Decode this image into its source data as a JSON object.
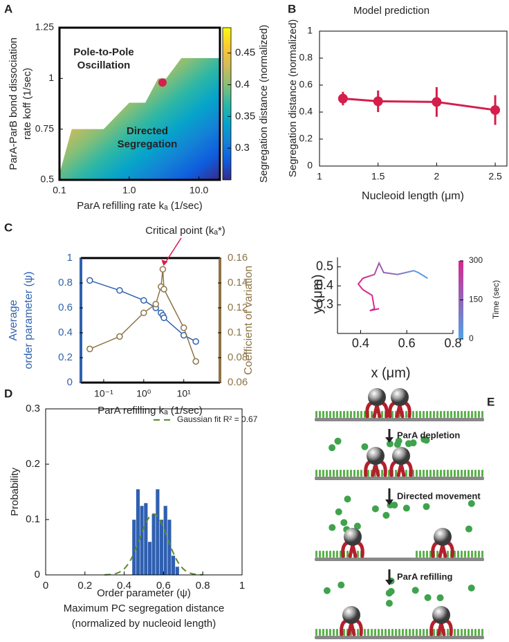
{
  "chart_data": [
    {
      "panel": "A",
      "type": "phase",
      "xlabel": "ParA refilling rate kₐ (1/sec)",
      "ylabel": [
        "ParA-ParB bond dissociation",
        "rate koff (1/sec)"
      ],
      "xlog": true,
      "xlim": [
        0.1,
        20
      ],
      "ylim": [
        0.5,
        1.25
      ],
      "xticks": [
        0.1,
        {
          "value": 1,
          "label": "1.0"
        },
        {
          "value": 10,
          "label": "10.0"
        }
      ],
      "yticks": [
        0.5,
        0.75,
        1,
        1.25
      ],
      "region": {
        "x": [
          0.1,
          0.1,
          0.15,
          0.43,
          1,
          1.7,
          2.6,
          3.4,
          5.6,
          13,
          20,
          20
        ],
        "y": [
          0.5,
          0.53,
          0.75,
          0.75,
          0.88,
          0.88,
          1.0,
          1.0,
          1.1,
          1.1,
          1.1,
          0.5
        ]
      },
      "point": {
        "x": 3,
        "y": 0.98,
        "color": "#d41e4c"
      },
      "annotations": [
        {
          "text": [
            "Pole-to-Pole",
            "Oscillation"
          ],
          "color": "#8a7040"
        },
        {
          "text": [
            "Directed",
            "Segregation"
          ],
          "color": "#a8358f"
        }
      ],
      "colorbar": {
        "label": "Segregation distance (normalized)",
        "lim": [
          0.25,
          0.49
        ],
        "ticks": [
          0.3,
          0.35,
          0.4,
          0.45
        ],
        "colors": [
          "#352a87",
          "#0f5cdd",
          "#1481d6",
          "#06a4ca",
          "#2eb7a4",
          "#87bf77",
          "#d1bb59",
          "#fec832",
          "#f9fb0e"
        ]
      }
    },
    {
      "panel": "B",
      "type": "errorline",
      "title": "Model prediction",
      "xlabel": "Nucleoid length (μm)",
      "ylabel": "Segregation distance (normalized)",
      "x": [
        1.2,
        1.5,
        2,
        2.5
      ],
      "values": [
        0.5,
        0.48,
        0.475,
        0.415
      ],
      "errors": [
        0.05,
        0.08,
        0.11,
        0.11
      ],
      "color": "#d41e4c",
      "xlim": [
        1,
        2.6
      ],
      "ylim": [
        0,
        1
      ],
      "xticks": [
        1,
        1.5,
        2,
        2.5
      ],
      "yticks": [
        0,
        0.2,
        0.4,
        0.6,
        0.8,
        1
      ]
    },
    {
      "panel": "C",
      "type": "dual",
      "xlabel": "ParA refilling kₐ (1/sec)",
      "ylabel": [
        "Average",
        "order parameter (ψ)"
      ],
      "y2label": "Coefficient of variation",
      "annotation": "Critical point (kₐ*)",
      "annotation_color": "#d41e4c",
      "xlog": true,
      "xlim": [
        0.027,
        80
      ],
      "ylim": [
        0,
        1
      ],
      "y2lim": [
        0.06,
        0.16
      ],
      "xticks": [
        {
          "value": 0.1,
          "label": "10⁻¹"
        },
        {
          "value": 1,
          "label": "10⁰"
        },
        {
          "value": 10,
          "label": "10¹"
        }
      ],
      "yticks": [
        0,
        0.2,
        0.4,
        0.6,
        0.8,
        1
      ],
      "y2ticks": [
        0.06,
        0.08,
        0.1,
        0.12,
        0.14,
        0.16
      ],
      "x": [
        0.045,
        0.25,
        1,
        2,
        2.7,
        3,
        3.2,
        10,
        20
      ],
      "series": [
        {
          "color": "#2f62ae",
          "values": [
            0.82,
            0.74,
            0.66,
            0.6,
            0.56,
            0.54,
            0.52,
            0.38,
            0.33
          ]
        },
        {
          "color": "#8c7444",
          "axis": "y2",
          "values": [
            0.087,
            0.097,
            0.116,
            0.123,
            0.137,
            0.151,
            0.135,
            0.104,
            0.077
          ]
        }
      ]
    },
    {
      "type": "trajectory",
      "xlabel": "x (μm)",
      "ylabel": "y (μm)",
      "xlim": [
        0.3,
        0.8
      ],
      "ylim": [
        0.15,
        0.55
      ],
      "xticks": [
        0.4,
        0.6,
        0.8
      ],
      "yticks": [
        0.3,
        0.4,
        0.5
      ],
      "x": [
        0.69,
        0.65,
        0.63,
        0.56,
        0.5,
        0.48,
        0.46,
        0.41,
        0.39,
        0.41,
        0.45,
        0.46,
        0.44,
        0.48
      ],
      "y": [
        0.44,
        0.47,
        0.48,
        0.46,
        0.47,
        0.52,
        0.46,
        0.44,
        0.41,
        0.38,
        0.35,
        0.28,
        0.27,
        0.28
      ],
      "colorbar": {
        "label": "Time (sec)",
        "lim": [
          0,
          300
        ],
        "ticks": [
          0,
          150,
          300
        ],
        "colors": [
          "#4fa3e6",
          "#d6288e"
        ]
      }
    },
    {
      "panel": "D",
      "type": "histogram",
      "xlabel": [
        "Order parameter (ψ)",
        "Maximum PC segregation distance",
        "(normalized by nucleoid length)"
      ],
      "ylabel": "Probability",
      "bins": [
        0.44,
        0.46,
        0.48,
        0.5,
        0.52,
        0.54,
        0.56,
        0.58,
        0.6,
        0.62,
        0.64,
        0.66,
        0.68
      ],
      "counts": [
        0.1,
        0.155,
        0.125,
        0.13,
        0.06,
        0.11,
        0.155,
        0.1,
        0.125,
        0.1,
        0.035,
        0.015
      ],
      "color": "#2f5fb0",
      "fit": {
        "name": "Gaussian fit R² = 0.67",
        "mean": 0.55,
        "sd": 0.07,
        "peak": 0.11,
        "color": "#5a8a2a"
      },
      "xlim": [
        0,
        1
      ],
      "ylim": [
        0,
        0.3
      ],
      "xticks": [
        0,
        0.2,
        0.4,
        0.6,
        0.8,
        1
      ],
      "yticks": [
        0,
        0.1,
        0.2,
        0.3
      ]
    }
  ],
  "diagram": {
    "panel": "E",
    "steps": [
      "ParA depletion",
      "Directed movement",
      "ParA refilling"
    ]
  }
}
